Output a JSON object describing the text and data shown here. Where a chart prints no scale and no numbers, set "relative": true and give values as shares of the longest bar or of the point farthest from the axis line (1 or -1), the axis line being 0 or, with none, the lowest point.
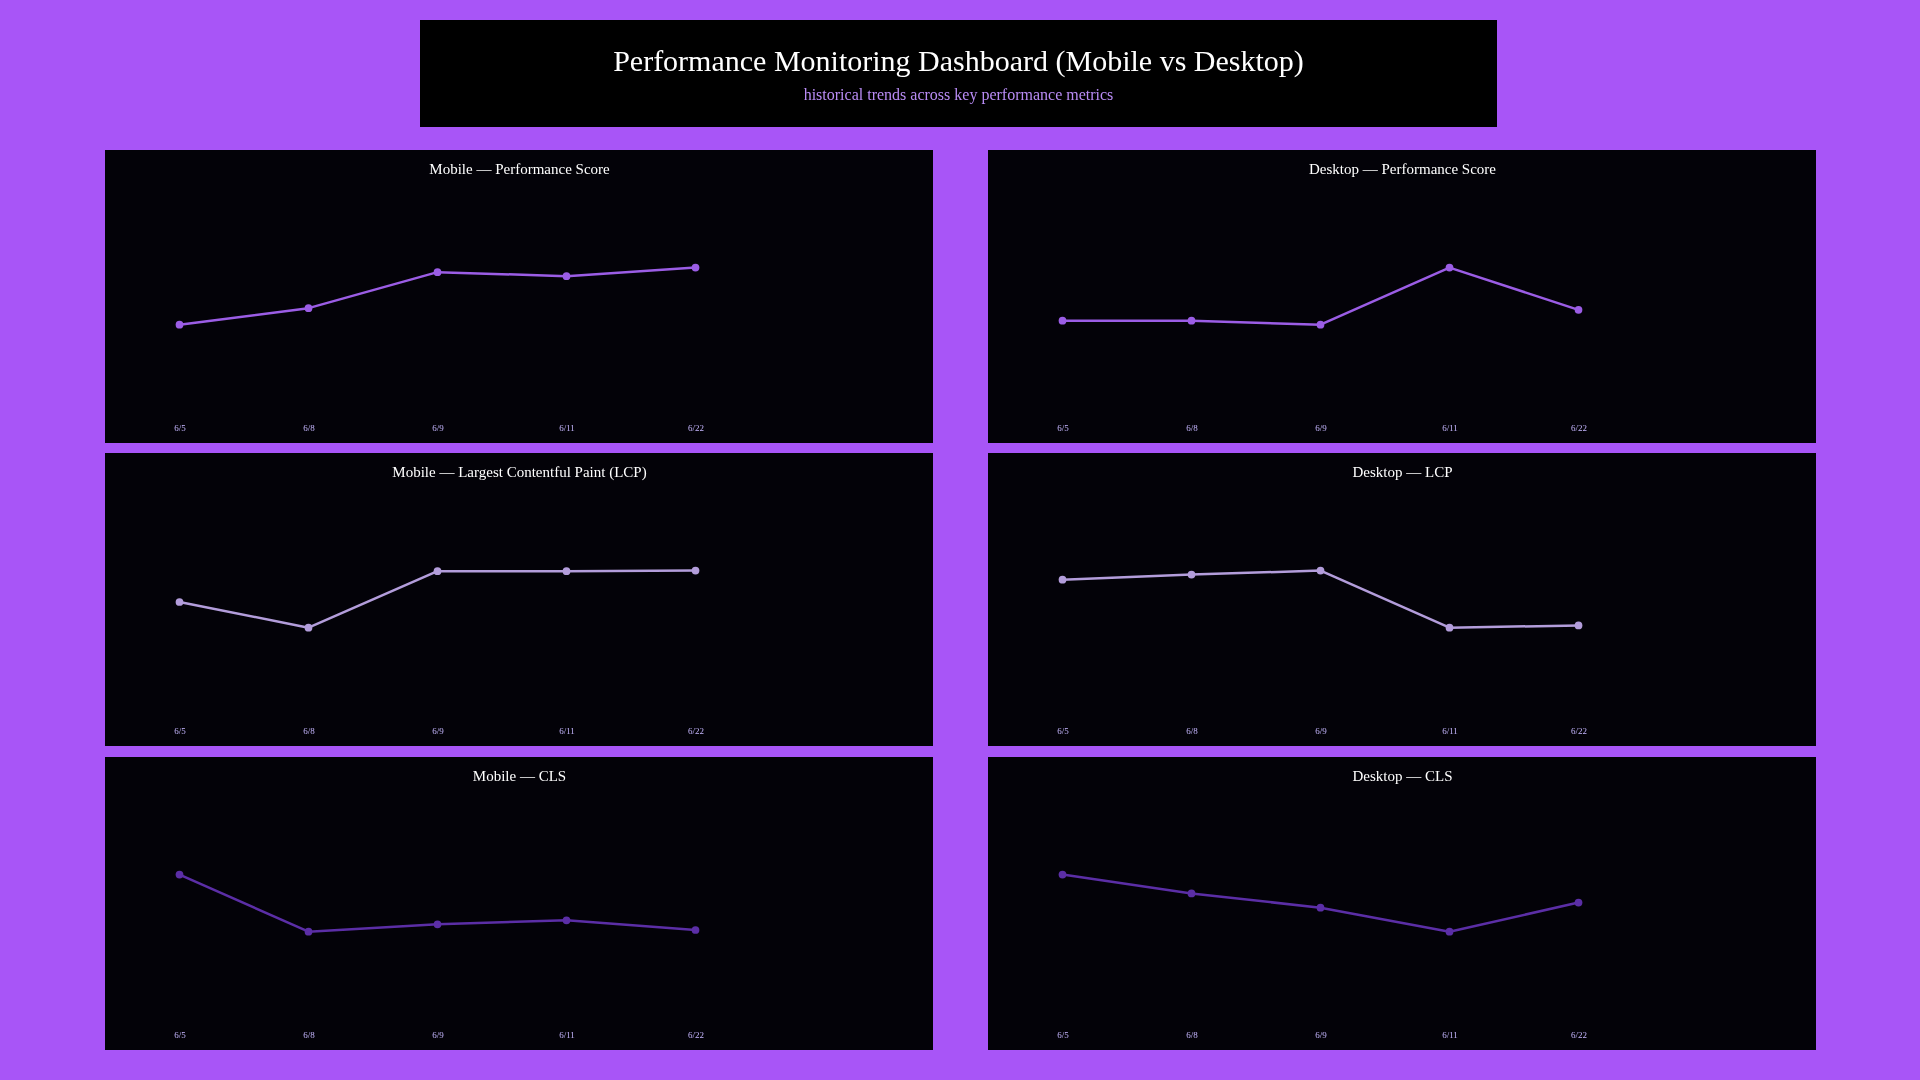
{
  "chart_data": [
    {
      "type": "other",
      "title": "Performance Monitoring Dashboard (Mobile vs Desktop)",
      "subtitle": "historical trends across key performance metrics"
    },
    {
      "type": "line",
      "title": "Mobile — Performance Score",
      "categories": [
        "6/5",
        "6/8",
        "6/9",
        "6/11",
        "6/22"
      ],
      "relative": true,
      "marker": "circle",
      "series": [
        {
          "color": "#9b5de5",
          "values": [
            0,
            0.29,
            0.92,
            0.85,
            1
          ]
        }
      ]
    },
    {
      "type": "line",
      "title": "Desktop — Performance Score",
      "categories": [
        "6/5",
        "6/8",
        "6/9",
        "6/11",
        "6/22"
      ],
      "relative": true,
      "marker": "circle",
      "series": [
        {
          "color": "#9b5de5",
          "values": [
            0.07,
            0.07,
            0,
            1,
            0.26
          ]
        }
      ]
    },
    {
      "type": "line",
      "title": "Mobile — Largest Contentful Paint (LCP)",
      "categories": [
        "6/5",
        "6/8",
        "6/9",
        "6/11",
        "6/22"
      ],
      "relative": true,
      "marker": "circle",
      "series": [
        {
          "color": "#b39ddb",
          "values": [
            0.45,
            0,
            0.99,
            0.99,
            1
          ]
        }
      ]
    },
    {
      "type": "line",
      "title": "Desktop — LCP",
      "categories": [
        "6/5",
        "6/8",
        "6/9",
        "6/11",
        "6/22"
      ],
      "relative": true,
      "marker": "circle",
      "series": [
        {
          "color": "#b39ddb",
          "values": [
            0.84,
            0.93,
            1,
            0,
            0.04
          ]
        }
      ]
    },
    {
      "type": "line",
      "title": "Mobile — CLS",
      "categories": [
        "6/5",
        "6/8",
        "6/9",
        "6/11",
        "6/22"
      ],
      "relative": true,
      "marker": "circle",
      "series": [
        {
          "color": "#5b2ea6",
          "values": [
            1,
            0,
            0.13,
            0.2,
            0.03
          ]
        }
      ]
    },
    {
      "type": "line",
      "title": "Desktop — CLS",
      "categories": [
        "6/5",
        "6/8",
        "6/9",
        "6/11",
        "6/22"
      ],
      "relative": true,
      "marker": "circle",
      "series": [
        {
          "color": "#5b2ea6",
          "values": [
            1,
            0.67,
            0.42,
            0,
            0.51
          ]
        }
      ]
    }
  ]
}
